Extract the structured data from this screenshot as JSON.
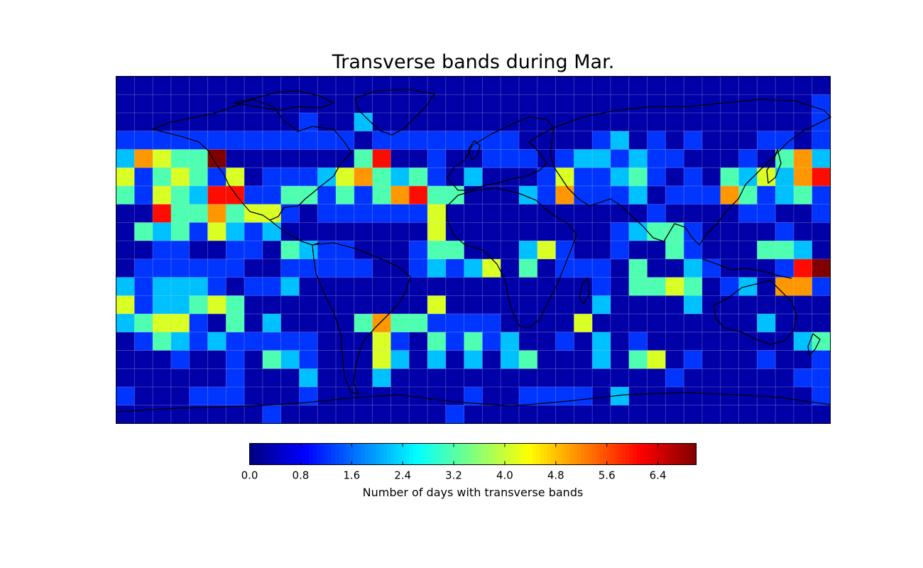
{
  "chart_data": {
    "type": "heatmap",
    "title": "Transverse bands during Mar.",
    "projection": "equirectangular world map with coastlines and country borders",
    "grid": true,
    "colormap": "jet",
    "grid_columns": 39,
    "grid_rows": 19,
    "colorbar": {
      "min": 0.0,
      "max": 7.0,
      "ticks": [
        "0.0",
        "0.8",
        "1.6",
        "2.4",
        "3.2",
        "4.0",
        "4.8",
        "5.6",
        "6.4"
      ],
      "label": "Number of days with transverse bands",
      "placement": "bottom"
    },
    "values": [
      [
        0,
        0,
        0,
        0,
        0,
        0,
        0,
        0,
        0,
        0,
        0,
        0,
        0,
        0,
        0,
        0,
        0,
        0,
        0,
        0,
        0,
        0,
        0,
        0,
        0,
        0,
        0,
        0,
        0,
        0,
        0,
        0,
        0,
        0,
        0,
        0,
        0,
        0,
        0
      ],
      [
        0,
        0,
        0,
        0,
        0,
        0,
        0,
        0,
        0,
        0,
        0,
        0,
        0,
        0,
        0,
        0,
        0,
        0,
        0,
        0,
        0,
        0,
        0,
        0,
        0,
        0,
        0,
        0,
        0,
        0,
        0,
        0,
        0,
        0,
        0,
        0,
        0,
        0,
        1
      ],
      [
        0,
        0,
        0,
        0,
        0,
        0,
        0,
        0,
        0,
        0,
        1,
        0,
        0,
        2,
        0,
        0,
        0,
        0,
        0,
        0,
        0,
        0,
        0,
        0,
        0,
        0,
        0,
        0,
        0,
        0,
        0,
        0,
        0,
        0,
        0,
        0,
        0,
        0,
        1
      ],
      [
        1,
        1,
        1,
        1,
        1,
        1,
        1,
        1,
        1,
        1,
        1,
        1,
        1,
        0,
        1,
        1,
        1,
        1,
        1,
        1,
        1,
        1,
        0,
        0,
        0,
        0,
        1,
        2,
        0,
        1,
        0,
        1,
        0,
        0,
        0,
        1,
        1,
        0,
        1
      ],
      [
        2,
        5,
        4,
        3,
        3,
        7,
        0,
        0,
        0,
        0,
        0,
        0,
        0,
        3,
        6,
        0,
        0,
        1,
        0,
        0,
        1,
        1,
        1,
        0,
        1,
        2,
        2,
        1,
        2,
        1,
        1,
        0,
        0,
        0,
        1,
        0,
        3,
        5,
        2
      ],
      [
        4,
        1,
        3,
        4,
        3,
        1,
        4,
        0,
        1,
        1,
        1,
        2,
        4,
        5,
        3,
        2,
        3,
        1,
        0,
        2,
        0,
        0,
        0,
        1,
        4,
        1,
        1,
        2,
        3,
        1,
        0,
        1,
        0,
        3,
        2,
        4,
        2,
        5,
        6
      ],
      [
        3,
        1,
        4,
        3,
        2,
        6,
        6,
        1,
        1,
        3,
        3,
        1,
        3,
        1,
        3,
        5,
        6,
        3,
        3,
        0,
        0,
        0,
        2,
        1,
        5,
        1,
        1,
        1,
        2,
        0,
        1,
        1,
        1,
        5,
        3,
        1,
        2,
        3,
        1
      ],
      [
        0,
        0,
        6,
        3,
        3,
        5,
        3,
        4,
        4,
        1,
        0,
        1,
        1,
        1,
        1,
        1,
        1,
        4,
        0,
        0,
        0,
        0,
        0,
        0,
        0,
        0,
        0,
        0,
        0,
        1,
        0,
        0,
        0,
        0,
        1,
        1,
        0,
        0,
        1
      ],
      [
        0,
        3,
        2,
        3,
        1,
        4,
        2,
        1,
        2,
        0,
        0,
        0,
        0,
        0,
        0,
        0,
        0,
        4,
        0,
        0,
        0,
        0,
        0,
        0,
        0,
        0,
        0,
        1,
        2,
        3,
        3,
        1,
        0,
        0,
        0,
        0,
        1,
        0,
        0
      ],
      [
        0,
        0,
        1,
        1,
        0,
        0,
        1,
        1,
        0,
        3,
        2,
        1,
        1,
        0,
        0,
        0,
        1,
        3,
        3,
        0,
        0,
        0,
        2,
        4,
        1,
        0,
        0,
        1,
        0,
        0,
        3,
        1,
        0,
        0,
        0,
        3,
        3,
        2,
        0
      ],
      [
        0,
        1,
        1,
        1,
        1,
        1,
        1,
        0,
        0,
        1,
        1,
        1,
        1,
        1,
        0,
        0,
        1,
        2,
        1,
        2,
        4,
        0,
        3,
        0,
        1,
        1,
        1,
        0,
        3,
        0,
        0,
        2,
        1,
        0,
        0,
        0,
        1,
        6,
        7
      ],
      [
        2,
        1,
        2,
        2,
        2,
        1,
        0,
        1,
        1,
        2,
        0,
        0,
        0,
        0,
        0,
        0,
        0,
        0,
        0,
        0,
        0,
        0,
        0,
        0,
        0,
        0,
        1,
        0,
        3,
        3,
        4,
        3,
        0,
        1,
        2,
        0,
        5,
        5,
        1
      ],
      [
        4,
        1,
        2,
        2,
        3,
        4,
        3,
        0,
        0,
        0,
        0,
        0,
        0,
        0,
        0,
        0,
        0,
        4,
        0,
        0,
        0,
        0,
        0,
        0,
        0,
        0,
        2,
        0,
        0,
        0,
        0,
        2,
        0,
        0,
        0,
        0,
        0,
        0,
        0
      ],
      [
        2,
        3,
        4,
        4,
        1,
        0,
        3,
        0,
        2,
        0,
        0,
        0,
        0,
        3,
        5,
        3,
        3,
        1,
        1,
        1,
        1,
        0,
        0,
        0,
        0,
        4,
        0,
        0,
        0,
        0,
        0,
        0,
        0,
        0,
        0,
        2,
        0,
        0,
        0
      ],
      [
        0,
        1,
        3,
        2,
        1,
        2,
        1,
        1,
        1,
        1,
        1,
        0,
        0,
        0,
        4,
        1,
        0,
        3,
        1,
        3,
        1,
        2,
        0,
        0,
        1,
        0,
        2,
        0,
        1,
        0,
        0,
        0,
        0,
        0,
        0,
        0,
        0,
        2,
        3
      ],
      [
        0,
        0,
        0,
        1,
        0,
        0,
        1,
        0,
        3,
        2,
        1,
        0,
        0,
        0,
        4,
        2,
        0,
        2,
        0,
        2,
        0,
        2,
        3,
        0,
        0,
        0,
        2,
        0,
        3,
        4,
        0,
        1,
        0,
        0,
        0,
        1,
        0,
        0,
        1
      ],
      [
        0,
        0,
        0,
        0,
        0,
        0,
        1,
        0,
        0,
        0,
        2,
        0,
        0,
        0,
        2,
        0,
        0,
        0,
        0,
        0,
        0,
        0,
        0,
        0,
        0,
        0,
        0,
        0,
        0,
        0,
        1,
        0,
        0,
        0,
        0,
        0,
        0,
        1,
        1
      ],
      [
        1,
        0,
        0,
        0,
        1,
        1,
        1,
        0,
        0,
        0,
        1,
        0,
        0,
        0,
        0,
        0,
        0,
        0,
        0,
        1,
        0,
        0,
        1,
        1,
        1,
        1,
        0,
        2,
        0,
        0,
        0,
        0,
        0,
        0,
        0,
        0,
        0,
        0,
        1
      ],
      [
        0,
        0,
        0,
        0,
        0,
        0,
        0,
        0,
        1,
        0,
        0,
        0,
        0,
        0,
        0,
        0,
        0,
        0,
        1,
        0,
        0,
        0,
        0,
        0,
        0,
        0,
        0,
        0,
        0,
        0,
        0,
        0,
        0,
        0,
        0,
        0,
        0,
        0,
        0
      ]
    ]
  }
}
